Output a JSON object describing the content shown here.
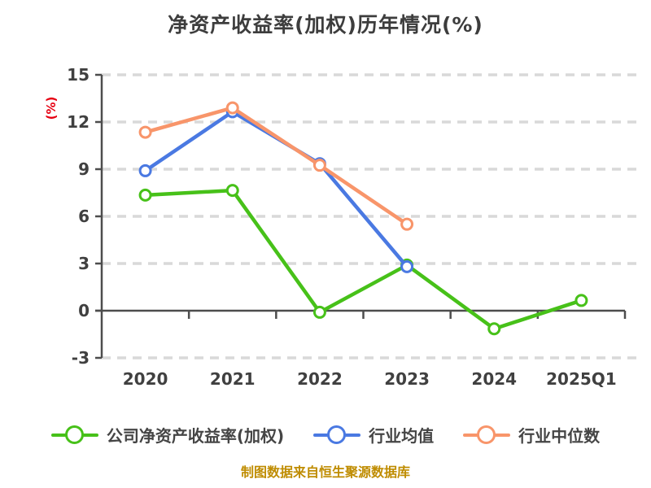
{
  "title": "净资产收益率(加权)历年情况(%)",
  "footer": "制图数据来自恒生聚源数据库",
  "colors": {
    "company_series": "#47c119",
    "industry_average_series": "#4a79e2",
    "industry_median_series": "#f8956a",
    "axis": "#4d4d4d",
    "gridline": "#d9d9d9",
    "tick_label": "#404040",
    "title_text": "#3d3d3d",
    "y_unit_label": "#e60012",
    "footer_text": "#bf8c00",
    "marker_fill": "#ffffff"
  },
  "chart_data": {
    "type": "line",
    "title": "净资产收益率(加权)历年情况(%)",
    "ylabel": "(%)",
    "xlabel": "",
    "categories": [
      "2020",
      "2021",
      "2022",
      "2023",
      "2024",
      "2025Q1"
    ],
    "series": [
      {
        "name": "公司净资产收益率(加权)",
        "key": "company-roe",
        "color": "#47c119",
        "values": [
          7.35,
          7.65,
          -0.1,
          2.9,
          -1.15,
          0.65
        ]
      },
      {
        "name": "行业均值",
        "key": "industry-average",
        "color": "#4a79e2",
        "values": [
          8.9,
          12.65,
          9.35,
          2.8,
          null,
          null
        ]
      },
      {
        "name": "行业中位数",
        "key": "industry-median",
        "color": "#f8956a",
        "values": [
          11.35,
          12.9,
          9.25,
          5.5,
          null,
          null
        ]
      }
    ],
    "ylim": [
      -3,
      15
    ],
    "yticks": [
      15,
      12,
      9,
      6,
      3,
      0,
      -3
    ],
    "grid": "horizontal dashed, solid axis line at 0",
    "legend_position": "bottom",
    "markers": "white-filled circles with series-colored ring"
  }
}
